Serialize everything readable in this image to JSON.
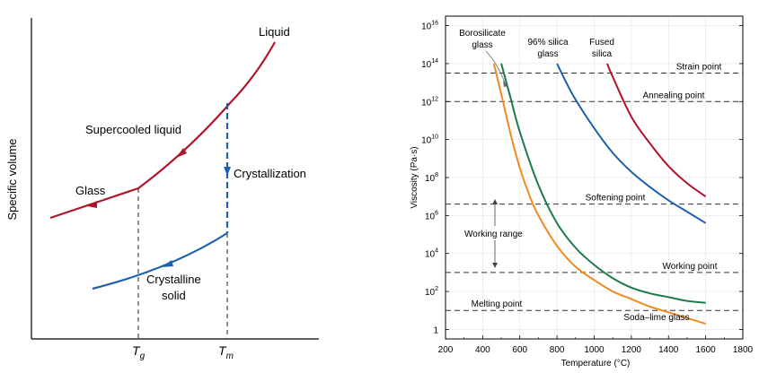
{
  "colors": {
    "liquid_glass": "#b0142a",
    "crystal": "#1f5fb0",
    "axis": "#000000",
    "borosilicate": "#1f7a4a",
    "silica96": "#1f5fb0",
    "fused_silica": "#b0142a",
    "soda_lime": "#f28a20",
    "reference": "#333333",
    "grid": "#e3e3e3"
  },
  "chart_data": [
    {
      "type": "line",
      "ylabel": "Specific volume",
      "x_ticks": [
        {
          "main": "T",
          "sub": "g"
        },
        {
          "main": "T",
          "sub": "m"
        }
      ],
      "labels": {
        "liquid": "Liquid",
        "supercooled": "Supercooled liquid",
        "glass": "Glass",
        "crystallization": "Crystallization",
        "crystalline_1": "Crystalline",
        "crystalline_2": "solid"
      }
    },
    {
      "type": "line",
      "xlabel": "Temperature (°C)",
      "ylabel": "Viscosity (Pa·s)",
      "y_scale": "log",
      "xlim": [
        200,
        1800
      ],
      "ylim_log10": [
        -0.5,
        16.5
      ],
      "x_ticks": [
        "200",
        "400",
        "600",
        "800",
        "1000",
        "1200",
        "1400",
        "1600",
        "1800"
      ],
      "y_ticks": [
        {
          "base": "1",
          "exp": ""
        },
        {
          "base": "10",
          "exp": "2"
        },
        {
          "base": "10",
          "exp": "4"
        },
        {
          "base": "10",
          "exp": "6"
        },
        {
          "base": "10",
          "exp": "8"
        },
        {
          "base": "10",
          "exp": "10"
        },
        {
          "base": "10",
          "exp": "12"
        },
        {
          "base": "10",
          "exp": "14"
        },
        {
          "base": "10",
          "exp": "16"
        }
      ],
      "reference_points": [
        {
          "label": "Strain point",
          "log10_viscosity": 13.5
        },
        {
          "label": "Annealing point",
          "log10_viscosity": 12.0
        },
        {
          "label": "Softening point",
          "log10_viscosity": 6.6
        },
        {
          "label": "Working point",
          "log10_viscosity": 3.0
        },
        {
          "label": "Melting point",
          "log10_viscosity": 1.0
        }
      ],
      "working_range_label": "Working range",
      "series": [
        {
          "name": "Borosilicate glass",
          "label_lines": [
            "Borosilicate",
            "glass"
          ],
          "x": [
            500,
            550,
            600,
            700,
            800,
            900,
            1000,
            1100,
            1200,
            1300,
            1400,
            1500,
            1600
          ],
          "log10_y": [
            14,
            12.2,
            10.4,
            7.6,
            5.6,
            4.3,
            3.4,
            2.7,
            2.2,
            1.9,
            1.7,
            1.5,
            1.4
          ]
        },
        {
          "name": "96% silica glass",
          "label_lines": [
            "96% silica",
            "glass"
          ],
          "x": [
            800,
            850,
            900,
            1000,
            1100,
            1200,
            1300,
            1400,
            1500,
            1600
          ],
          "log10_y": [
            14,
            13.0,
            12.1,
            10.6,
            9.3,
            8.3,
            7.5,
            6.8,
            6.2,
            5.6
          ]
        },
        {
          "name": "Fused silica",
          "label_lines": [
            "Fused",
            "silica"
          ],
          "x": [
            1070,
            1100,
            1200,
            1300,
            1400,
            1500,
            1600
          ],
          "log10_y": [
            14,
            13.3,
            11.2,
            9.8,
            8.6,
            7.7,
            7.0
          ]
        },
        {
          "name": "Soda–lime glass",
          "label_lines": [
            "Soda–lime glass"
          ],
          "x": [
            460,
            500,
            550,
            600,
            650,
            700,
            800,
            900,
            1000,
            1100,
            1200,
            1300,
            1400,
            1500,
            1600
          ],
          "log10_y": [
            14,
            12.4,
            10.3,
            8.5,
            7.1,
            6.0,
            4.4,
            3.3,
            2.6,
            2.0,
            1.6,
            1.2,
            0.9,
            0.6,
            0.3
          ]
        }
      ]
    }
  ]
}
